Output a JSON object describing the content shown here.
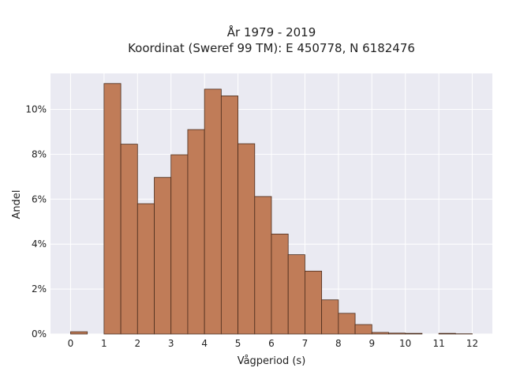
{
  "chart_data": {
    "type": "bar",
    "title": "År 1979 - 2019",
    "subtitle": "Koordinat (Sweref 99 TM): E 450778, N 6182476",
    "xlabel": "Vågperiod (s)",
    "ylabel": "Andel",
    "xlim": [
      -0.6,
      12.6
    ],
    "ylim": [
      0,
      11.6
    ],
    "x_ticks": [
      0,
      1,
      2,
      3,
      4,
      5,
      6,
      7,
      8,
      9,
      10,
      11,
      12
    ],
    "y_ticks": [
      0,
      2,
      4,
      6,
      8,
      10
    ],
    "y_tick_labels": [
      "0%",
      "2%",
      "4%",
      "6%",
      "8%",
      "10%"
    ],
    "bin_width": 0.5,
    "bins": [
      {
        "start": 0.0,
        "value": 0.1
      },
      {
        "start": 0.5,
        "value": 0.0
      },
      {
        "start": 1.0,
        "value": 11.15
      },
      {
        "start": 1.5,
        "value": 8.45
      },
      {
        "start": 2.0,
        "value": 5.8
      },
      {
        "start": 2.5,
        "value": 6.97
      },
      {
        "start": 3.0,
        "value": 7.98
      },
      {
        "start": 3.5,
        "value": 9.1
      },
      {
        "start": 4.0,
        "value": 10.9
      },
      {
        "start": 4.5,
        "value": 10.6
      },
      {
        "start": 5.0,
        "value": 8.47
      },
      {
        "start": 5.5,
        "value": 6.12
      },
      {
        "start": 6.0,
        "value": 4.45
      },
      {
        "start": 6.5,
        "value": 3.53
      },
      {
        "start": 7.0,
        "value": 2.8
      },
      {
        "start": 7.5,
        "value": 1.52
      },
      {
        "start": 8.0,
        "value": 0.92
      },
      {
        "start": 8.5,
        "value": 0.42
      },
      {
        "start": 9.0,
        "value": 0.07
      },
      {
        "start": 9.5,
        "value": 0.04
      },
      {
        "start": 10.0,
        "value": 0.03
      },
      {
        "start": 10.5,
        "value": 0.0
      },
      {
        "start": 11.0,
        "value": 0.03
      },
      {
        "start": 11.5,
        "value": 0.01
      }
    ],
    "grid": true,
    "colors": {
      "bar_fill": "#c07c58",
      "bar_edge": "#4a2c1c",
      "plot_background": "#eaeaf2",
      "grid": "#ffffff"
    }
  }
}
